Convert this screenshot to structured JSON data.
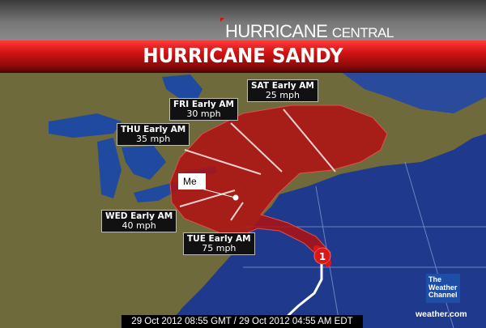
{
  "header": {
    "brand_main": "HURRICANE",
    "brand_sub": "CENTRAL",
    "title": "HURRICANE SANDY"
  },
  "forecast_labels": [
    {
      "day": "SAT Early AM",
      "wind": "25 mph"
    },
    {
      "day": "FRI Early AM",
      "wind": "30 mph"
    },
    {
      "day": "THU Early AM",
      "wind": "35 mph"
    },
    {
      "day": "WED Early AM",
      "wind": "40 mph"
    },
    {
      "day": "TUE Early AM",
      "wind": "75 mph"
    }
  ],
  "marker": {
    "label": "Me"
  },
  "storm": {
    "category": "1",
    "icon": "hurricane-icon"
  },
  "timestamp": "29 Oct 2012 08:55 GMT / 29 Oct 2012 04:55 AM EDT",
  "logo": {
    "line1": "The",
    "line2": "Weather",
    "line3": "Channel",
    "site": "weather.com"
  },
  "colors": {
    "banner": "#d41414",
    "cone": "#b01010",
    "ocean": "#1f3a8c",
    "land": "#6e6a3c"
  }
}
